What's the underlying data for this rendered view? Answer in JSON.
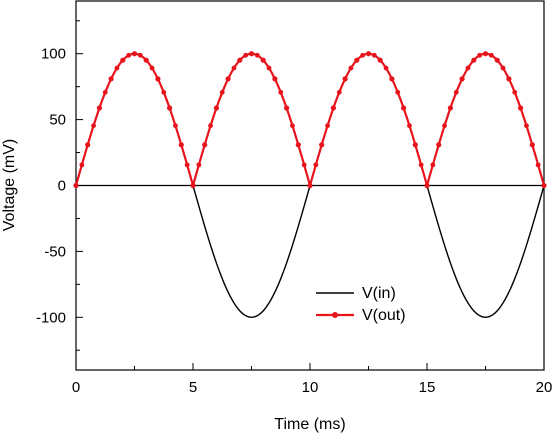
{
  "chart_data": {
    "type": "line",
    "xlabel": "Time (ms)",
    "ylabel": "Voltage (mV)",
    "xlim": [
      0,
      20
    ],
    "ylim": [
      -140,
      140
    ],
    "x_ticks": [
      0,
      5,
      10,
      15,
      20
    ],
    "x_tick_labels": [
      "0",
      "5",
      "10",
      "15",
      "20"
    ],
    "y_ticks": [
      100,
      50,
      0,
      -50,
      -100
    ],
    "y_tick_labels": [
      "100",
      "50",
      "0",
      "-50",
      "-100"
    ],
    "grid": false,
    "legend_position": "lower-center",
    "zero_line": true,
    "series": [
      {
        "name": "V(in)",
        "color": "#000000",
        "marker": "none",
        "x": [
          0,
          0.5,
          1,
          1.5,
          2,
          2.5,
          3,
          3.5,
          4,
          4.5,
          5,
          5.5,
          6,
          6.5,
          7,
          7.5,
          8,
          8.5,
          9,
          9.5,
          10,
          10.5,
          11,
          11.5,
          12,
          12.5,
          13,
          13.5,
          14,
          14.5,
          15,
          15.5,
          16,
          16.5,
          17,
          17.5,
          18,
          18.5,
          19,
          19.5,
          20
        ],
        "y": [
          0,
          30.9,
          58.8,
          80.9,
          95.1,
          100,
          95.1,
          80.9,
          58.8,
          30.9,
          0,
          -30.9,
          -58.8,
          -80.9,
          -95.1,
          -100,
          -95.1,
          -80.9,
          -58.8,
          -30.9,
          0,
          30.9,
          58.8,
          80.9,
          95.1,
          100,
          95.1,
          80.9,
          58.8,
          30.9,
          0,
          -30.9,
          -58.8,
          -80.9,
          -95.1,
          -100,
          -95.1,
          -80.9,
          -58.8,
          -30.9,
          0
        ]
      },
      {
        "name": "V(out)",
        "color": "#e8141c",
        "marker": "circle",
        "x": [
          0,
          0.5,
          1,
          1.5,
          2,
          2.5,
          3,
          3.5,
          4,
          4.5,
          5,
          5.5,
          6,
          6.5,
          7,
          7.5,
          8,
          8.5,
          9,
          9.5,
          10,
          10.5,
          11,
          11.5,
          12,
          12.5,
          13,
          13.5,
          14,
          14.5,
          15,
          15.5,
          16,
          16.5,
          17,
          17.5,
          18,
          18.5,
          19,
          19.5,
          20
        ],
        "y": [
          0,
          30.9,
          58.8,
          80.9,
          95.1,
          100,
          95.1,
          80.9,
          58.8,
          30.9,
          0,
          30.9,
          58.8,
          80.9,
          95.1,
          100,
          95.1,
          80.9,
          58.8,
          30.9,
          0,
          30.9,
          58.8,
          80.9,
          95.1,
          100,
          95.1,
          80.9,
          58.8,
          30.9,
          0,
          30.9,
          58.8,
          80.9,
          95.1,
          100,
          95.1,
          80.9,
          58.8,
          30.9,
          0
        ]
      }
    ]
  }
}
